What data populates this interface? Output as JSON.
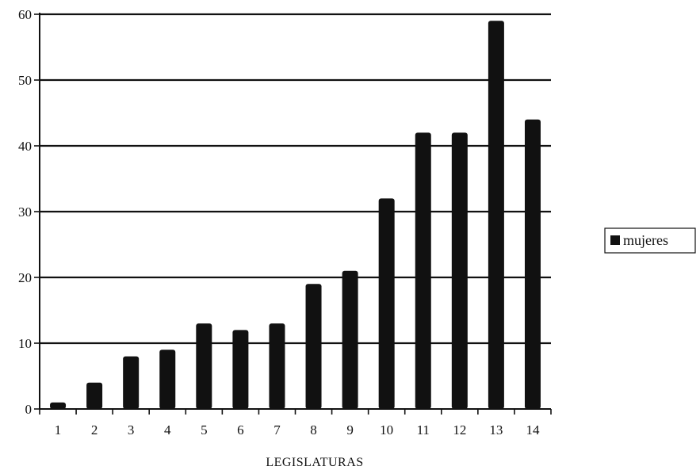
{
  "chart_data": {
    "type": "bar",
    "title": "",
    "xlabel": "LEGISLATURAS",
    "ylabel": "",
    "categories": [
      "1",
      "2",
      "3",
      "4",
      "5",
      "6",
      "7",
      "8",
      "9",
      "10",
      "11",
      "12",
      "13",
      "14"
    ],
    "series": [
      {
        "name": "mujeres",
        "values": [
          1,
          4,
          8,
          9,
          13,
          12,
          13,
          19,
          21,
          32,
          42,
          42,
          59,
          44
        ]
      }
    ],
    "ylim": [
      0,
      60
    ],
    "yticks": [
      0,
      10,
      20,
      30,
      40,
      50,
      60
    ],
    "grid": true,
    "legend_position": "right",
    "colors": {
      "bar": "#111111",
      "grid": "#111111",
      "axis": "#111111"
    }
  }
}
